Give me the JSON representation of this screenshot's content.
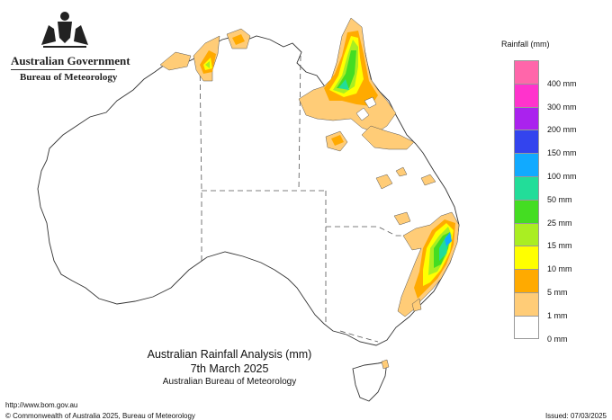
{
  "header": {
    "government": "Australian Government",
    "agency": "Bureau of Meteorology"
  },
  "title": {
    "line1": "Australian Rainfall Analysis (mm)",
    "line2": "7th March 2025",
    "line3": "Australian Bureau of Meteorology"
  },
  "footer": {
    "url": "http://www.bom.gov.au",
    "copyright": "© Commonwealth of Australia 2025, Bureau of Meteorology",
    "issued": "Issued: 07/03/2025"
  },
  "legend": {
    "title": "Rainfall (mm)",
    "items": [
      {
        "label": "",
        "color": "#ff66aa"
      },
      {
        "label": "400 mm",
        "color": "#ff33cc"
      },
      {
        "label": "300 mm",
        "color": "#aa22ee"
      },
      {
        "label": "200 mm",
        "color": "#3344ee"
      },
      {
        "label": "150 mm",
        "color": "#11aaff"
      },
      {
        "label": "100 mm",
        "color": "#22dd99"
      },
      {
        "label": "50 mm",
        "color": "#44dd22"
      },
      {
        "label": "25 mm",
        "color": "#aaee22"
      },
      {
        "label": "15 mm",
        "color": "#ffff00"
      },
      {
        "label": "10 mm",
        "color": "#ffaa00"
      },
      {
        "label": "5 mm",
        "color": "#ffcc77"
      },
      {
        "label": "1 mm",
        "color": "#ffffff"
      },
      {
        "label": "0 mm",
        "color": ""
      }
    ]
  },
  "colors": {
    "land_outline": "#333333",
    "border": "#555555"
  }
}
